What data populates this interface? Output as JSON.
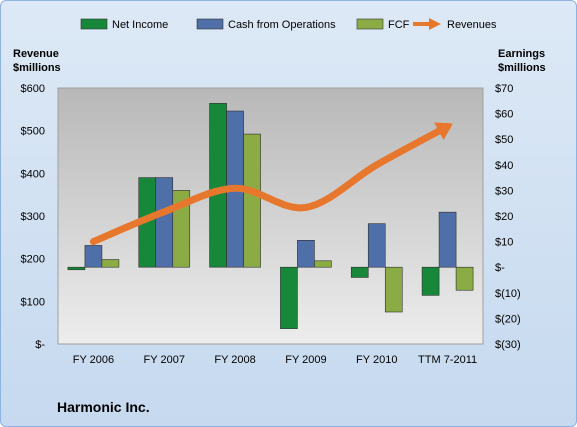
{
  "company": "Harmonic Inc.",
  "colors": {
    "net_income": "#17873a",
    "cash_from_operations": "#4f6fa8",
    "fcf": "#8bac45",
    "revenues": "#e8772e",
    "plot_top": "#b8b8b8",
    "plot_bottom": "#ededed"
  },
  "chart_data": {
    "type": "bar",
    "categories": [
      "FY 2006",
      "FY 2007",
      "FY 2008",
      "FY 2009",
      "FY 2010",
      "TTM 7-2011"
    ],
    "left_axis": {
      "title_line1": "Revenue",
      "title_line2": "$millions",
      "range": [
        0,
        600
      ],
      "ticks": [
        "$-",
        "$100",
        "$200",
        "$300",
        "$400",
        "$500",
        "$600"
      ]
    },
    "right_axis": {
      "title_line1": "Earnings",
      "title_line2": "$millions",
      "range": [
        -30,
        70
      ],
      "ticks": [
        "$(30)",
        "$(20)",
        "$(10)",
        "$-",
        "$10",
        "$20",
        "$30",
        "$40",
        "$50",
        "$60",
        "$70"
      ]
    },
    "series": [
      {
        "name": "Net Income",
        "type": "bar",
        "axis": "right",
        "values": [
          -1,
          35,
          64,
          -24,
          -4,
          -11
        ]
      },
      {
        "name": "Cash from Operations",
        "type": "bar",
        "axis": "right",
        "values": [
          8.5,
          35,
          61,
          10.5,
          17,
          21.5
        ]
      },
      {
        "name": "FCF",
        "type": "bar",
        "axis": "right",
        "values": [
          3,
          30,
          52,
          2.5,
          -17.5,
          -9
        ]
      },
      {
        "name": "Revenues",
        "type": "line",
        "axis": "left",
        "values": [
          240,
          310,
          365,
          320,
          420,
          510
        ]
      }
    ],
    "legend_position": "top",
    "grid": false
  }
}
